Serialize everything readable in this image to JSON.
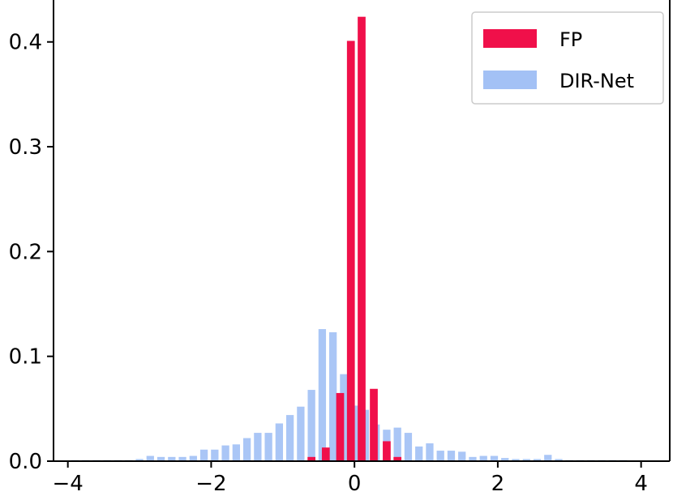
{
  "chart_data": {
    "type": "bar",
    "title": "",
    "xlabel": "",
    "ylabel": "",
    "xlim": [
      -4.2,
      4.4
    ],
    "ylim": [
      0,
      0.44
    ],
    "grid": false,
    "legend_placement": "top-right",
    "x_ticks": [
      -4,
      -2,
      0,
      2,
      4
    ],
    "x_tick_labels": [
      "−4",
      "−2",
      "0",
      "2",
      "4"
    ],
    "y_ticks": [
      0.0,
      0.1,
      0.2,
      0.3,
      0.4
    ],
    "y_tick_labels": [
      "0.0",
      "0.1",
      "0.2",
      "0.3",
      "0.4"
    ],
    "series": [
      {
        "name": "FP",
        "color": "#f0104a",
        "x": [
          -0.6,
          -0.4,
          -0.2,
          -0.05,
          0.1,
          0.27,
          0.45,
          0.6
        ],
        "values": [
          0.004,
          0.013,
          0.065,
          0.401,
          0.424,
          0.069,
          0.019,
          0.004
        ]
      },
      {
        "name": "DIR-Net",
        "color": "#a3c1f5",
        "x": [
          -3.9,
          -3.75,
          -3.6,
          -3.45,
          -3.3,
          -3.15,
          -3.0,
          -2.85,
          -2.7,
          -2.55,
          -2.4,
          -2.25,
          -2.1,
          -1.95,
          -1.8,
          -1.65,
          -1.5,
          -1.35,
          -1.2,
          -1.05,
          -0.9,
          -0.75,
          -0.6,
          -0.45,
          -0.3,
          -0.15,
          0.0,
          0.15,
          0.3,
          0.45,
          0.6,
          0.75,
          0.9,
          1.05,
          1.2,
          1.35,
          1.5,
          1.65,
          1.8,
          1.95,
          2.1,
          2.25,
          2.4,
          2.55,
          2.7,
          2.85,
          3.0,
          3.15,
          3.3,
          3.45,
          3.6,
          3.75
        ],
        "values": [
          0.001,
          0.001,
          0.001,
          0.001,
          0.001,
          0.001,
          0.002,
          0.005,
          0.004,
          0.004,
          0.004,
          0.005,
          0.011,
          0.011,
          0.015,
          0.016,
          0.022,
          0.027,
          0.027,
          0.036,
          0.044,
          0.052,
          0.068,
          0.126,
          0.123,
          0.083,
          0.053,
          0.049,
          0.035,
          0.03,
          0.032,
          0.027,
          0.014,
          0.017,
          0.01,
          0.01,
          0.009,
          0.004,
          0.005,
          0.005,
          0.003,
          0.002,
          0.002,
          0.002,
          0.006,
          0.002,
          0.001,
          0.001,
          0.001,
          0.001,
          0.001,
          0.001
        ]
      }
    ]
  }
}
